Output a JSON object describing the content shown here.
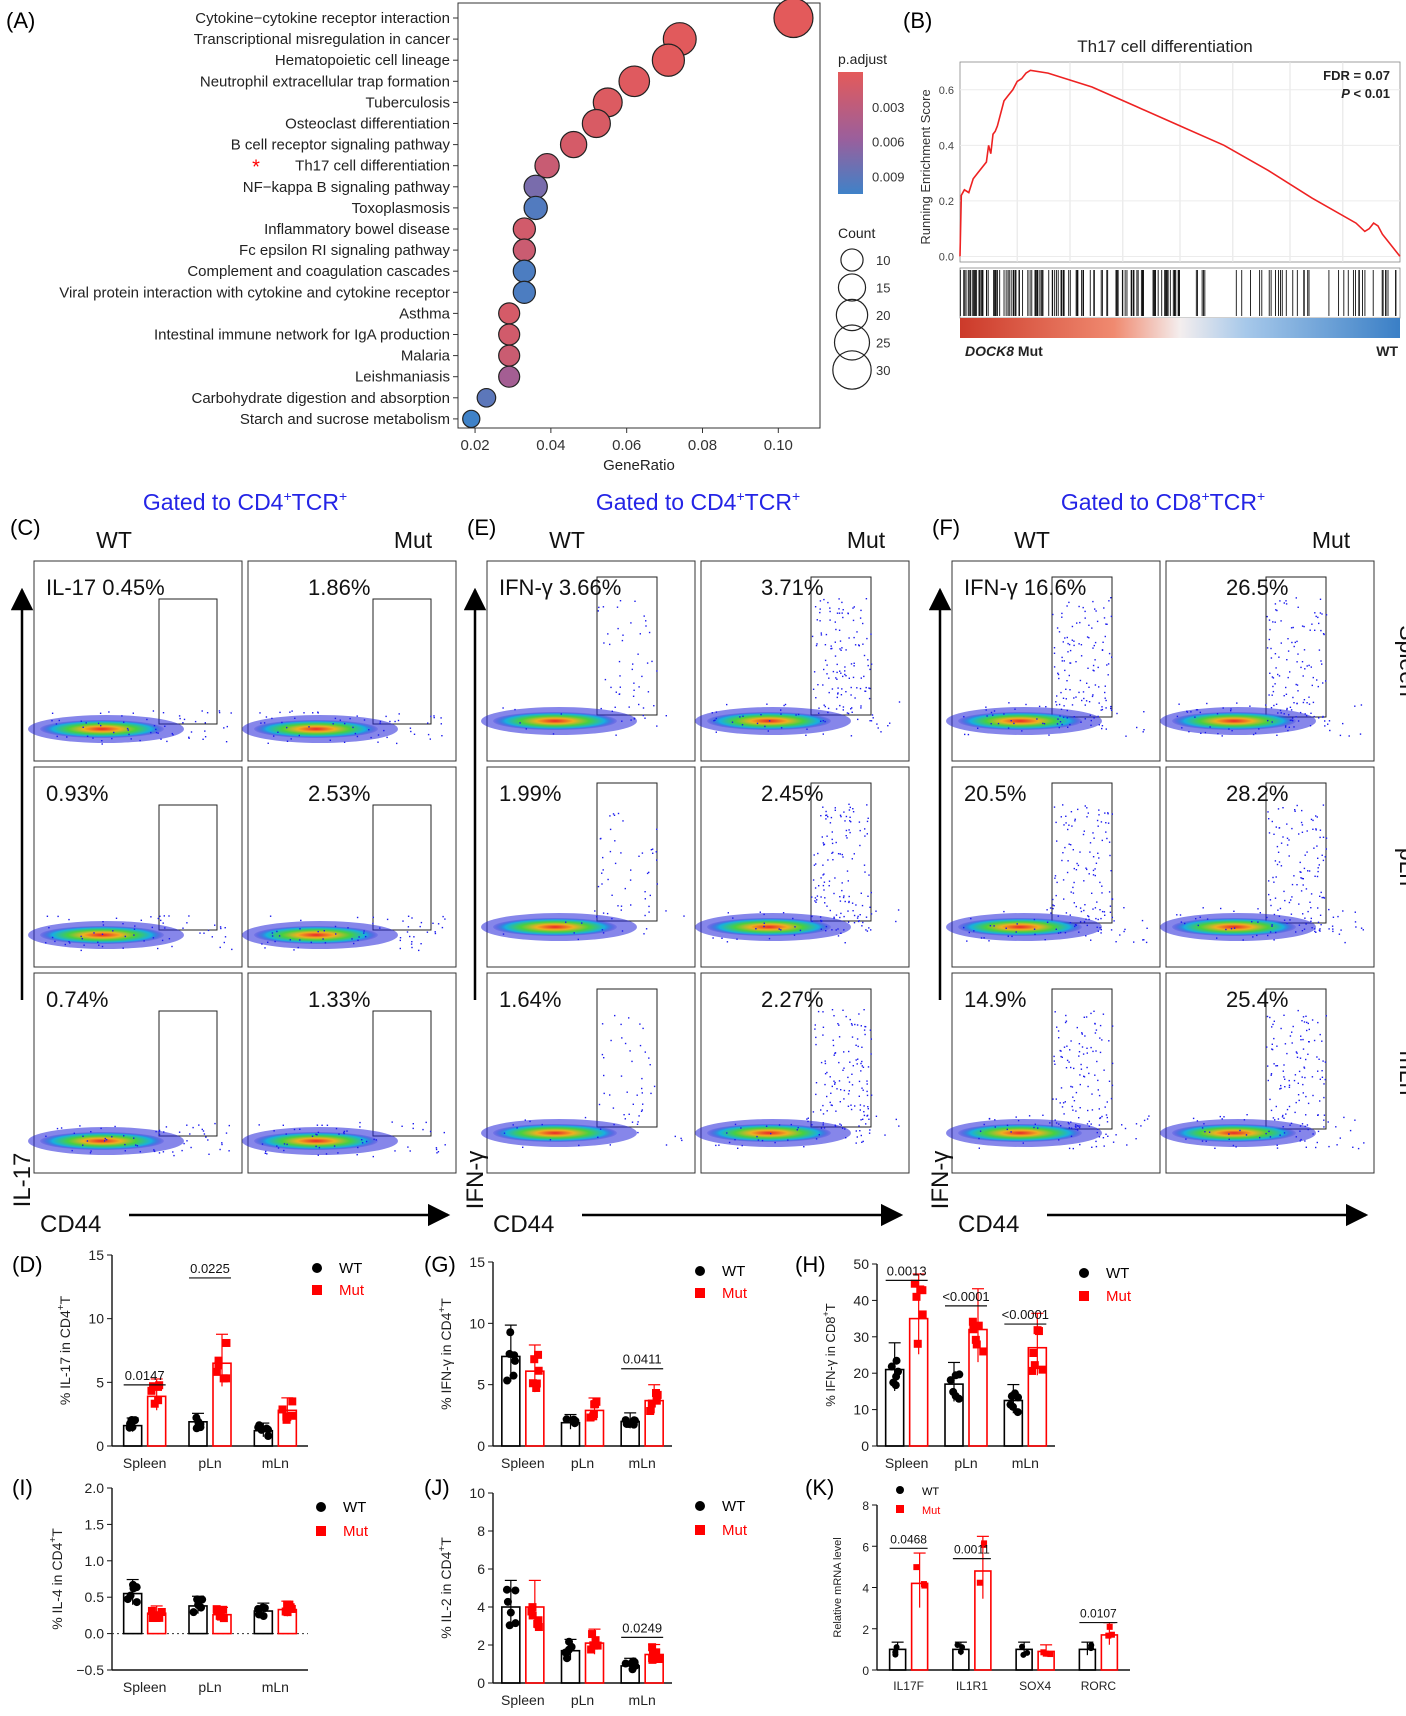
{
  "panel_letters": {
    "A": "(A)",
    "B": "(B)",
    "C": "(C)",
    "D": "(D)",
    "E": "(E)",
    "F": "(F)",
    "G": "(G)",
    "H": "(H)",
    "I": "(I)",
    "J": "(J)",
    "K": "(K)"
  },
  "colors": {
    "wt": "#000000",
    "mut": "#ff0000",
    "gate_title": "#2424e6",
    "gsea_line": "#ee2222"
  },
  "chart_data": [
    {
      "id": "A",
      "type": "scatter",
      "categories": [
        "Cytokine−cytokine receptor interaction",
        "Transcriptional misregulation in cancer",
        "Hematopoietic cell lineage",
        "Neutrophil extracellular trap formation",
        "Tuberculosis",
        "Osteoclast differentiation",
        "B cell receptor signaling pathway",
        "Th17 cell differentiation",
        "NF−kappa B signaling pathway",
        "Toxoplasmosis",
        "Inflammatory bowel disease",
        "Fc epsilon RI signaling pathway",
        "Complement and coagulation cascades",
        "Viral protein interaction with cytokine and cytokine receptor",
        "Asthma",
        "Intestinal immune network for IgA production",
        "Malaria",
        "Leishmaniasis",
        "Carbohydrate digestion and absorption",
        "Starch and sucrose metabolism"
      ],
      "x": [
        0.104,
        0.074,
        0.071,
        0.062,
        0.055,
        0.052,
        0.046,
        0.039,
        0.036,
        0.036,
        0.033,
        0.033,
        0.033,
        0.033,
        0.029,
        0.029,
        0.029,
        0.029,
        0.023,
        0.019
      ],
      "count": [
        31,
        22,
        21,
        19,
        17,
        16,
        14,
        12,
        11,
        11,
        10,
        10,
        10,
        10,
        9,
        9,
        9,
        9,
        7,
        6
      ],
      "p_adjust": [
        0.0001,
        0.0002,
        0.0002,
        0.0004,
        0.0006,
        0.0009,
        0.0012,
        0.0022,
        0.0075,
        0.0095,
        0.0015,
        0.002,
        0.0098,
        0.0098,
        0.0012,
        0.0015,
        0.002,
        0.005,
        0.009,
        0.0105
      ],
      "marked_category": "Th17 cell differentiation",
      "marker_symbol": "*",
      "xlabel": "GeneRatio",
      "xticks": [
        "0.02",
        "0.04",
        "0.06",
        "0.08",
        "0.10"
      ],
      "xlim": [
        0.0155,
        0.111
      ],
      "color_legend": {
        "title": "p.adjust",
        "ticks": [
          "0.003",
          "0.006",
          "0.009"
        ],
        "range": [
          0,
          0.0105
        ]
      },
      "size_legend": {
        "title": "Count",
        "values": [
          10,
          15,
          20,
          25,
          30
        ]
      }
    },
    {
      "id": "B",
      "type": "line",
      "title": "Th17 cell differentiation",
      "ylabel": "Running Enrichment Score",
      "yticks": [
        "0.0",
        "0.2",
        "0.4",
        "0.6"
      ],
      "ylim": [
        -0.02,
        0.7
      ],
      "xlim": [
        0,
        1
      ],
      "x": [
        0,
        0.003,
        0.01,
        0.02,
        0.03,
        0.04,
        0.06,
        0.065,
        0.07,
        0.075,
        0.08,
        0.085,
        0.09,
        0.1,
        0.11,
        0.12,
        0.13,
        0.14,
        0.15,
        0.16,
        0.2,
        0.3,
        0.4,
        0.5,
        0.6,
        0.7,
        0.8,
        0.9,
        0.92,
        0.93,
        0.94,
        0.95,
        0.96,
        0.97,
        1.0
      ],
      "y": [
        0,
        0.22,
        0.24,
        0.23,
        0.28,
        0.3,
        0.34,
        0.4,
        0.37,
        0.44,
        0.45,
        0.47,
        0.5,
        0.56,
        0.58,
        0.6,
        0.63,
        0.64,
        0.66,
        0.67,
        0.66,
        0.61,
        0.54,
        0.47,
        0.4,
        0.31,
        0.21,
        0.12,
        0.09,
        0.1,
        0.12,
        0.11,
        0.08,
        0.06,
        0.0
      ],
      "fdr_text": "FDR = 0.07",
      "p_prefix": "P",
      "p_suffix": " < 0.01",
      "left_label_italic": "DOCK8",
      "left_label_rest": " Mut",
      "right_label": "WT"
    },
    {
      "id": "C",
      "type": "scatter",
      "title_prefix": "Gated to CD4",
      "title_sup1": "+",
      "title_mid": "TCR",
      "title_sup2": "+",
      "col_labels": [
        "WT",
        "Mut"
      ],
      "ylabel": "IL-17",
      "xlabel": "CD44",
      "gate_values": [
        [
          "IL-17 0.45%",
          "1.86%"
        ],
        [
          "0.93%",
          "2.53%"
        ],
        [
          "0.74%",
          "1.33%"
        ]
      ]
    },
    {
      "id": "E",
      "type": "scatter",
      "title_prefix": "Gated to CD4",
      "title_sup1": "+",
      "title_mid": "TCR",
      "title_sup2": "+",
      "col_labels": [
        "WT",
        "Mut"
      ],
      "ylabel": "IFN-γ",
      "xlabel": "CD44",
      "gate_values": [
        [
          "IFN-γ 3.66%",
          "3.71%"
        ],
        [
          "1.99%",
          "2.45%"
        ],
        [
          "1.64%",
          "2.27%"
        ]
      ]
    },
    {
      "id": "F",
      "type": "scatter",
      "title_prefix": "Gated to CD8",
      "title_sup1": "+",
      "title_mid": "TCR",
      "title_sup2": "+",
      "col_labels": [
        "WT",
        "Mut"
      ],
      "row_labels": [
        "Spleen",
        "pLn",
        "mLn"
      ],
      "ylabel": "IFN-γ",
      "xlabel": "CD44",
      "gate_values": [
        [
          "IFN-γ 16.6%",
          "26.5%"
        ],
        [
          "20.5%",
          "28.2%"
        ],
        [
          "14.9%",
          "25.4%"
        ]
      ]
    },
    {
      "id": "D",
      "type": "bar",
      "categories": [
        "Spleen",
        "pLn",
        "mLn"
      ],
      "series": [
        {
          "name": "WT",
          "values": [
            1.6,
            1.9,
            1.2
          ]
        },
        {
          "name": "Mut",
          "values": [
            3.9,
            6.5,
            2.8
          ]
        }
      ],
      "ylabel_pre": "% IL-17 in CD4",
      "ylabel_sup": "+",
      "ylabel_post": "T",
      "yticks": [
        "0",
        "5",
        "10",
        "15"
      ],
      "ylim": [
        0,
        15
      ],
      "annotations": [
        {
          "text": "0.0147",
          "category": 0,
          "y": 4.8
        },
        {
          "text": "0.0225",
          "category": 1,
          "y": 13.2
        }
      ]
    },
    {
      "id": "G",
      "type": "bar",
      "categories": [
        "Spleen",
        "pLn",
        "mLn"
      ],
      "series": [
        {
          "name": "WT",
          "values": [
            7.3,
            1.9,
            2.0
          ]
        },
        {
          "name": "Mut",
          "values": [
            6.1,
            2.9,
            3.7
          ]
        }
      ],
      "ylabel_pre": "% IFN-γ in CD4",
      "ylabel_sup": "+",
      "ylabel_post": "T",
      "yticks": [
        "0",
        "5",
        "10",
        "15"
      ],
      "ylim": [
        0,
        15
      ],
      "annotations": [
        {
          "text": "0.0411",
          "category": 2,
          "y": 6.3
        }
      ]
    },
    {
      "id": "H",
      "type": "bar",
      "categories": [
        "Spleen",
        "pLn",
        "mLn"
      ],
      "series": [
        {
          "name": "WT",
          "values": [
            21,
            17,
            12.5
          ]
        },
        {
          "name": "Mut",
          "values": [
            35,
            32,
            27
          ]
        }
      ],
      "ylabel_pre": "% IFN-γ in CD8",
      "ylabel_sup": "+",
      "ylabel_post": "T",
      "yticks": [
        "0",
        "10",
        "20",
        "30",
        "40",
        "50"
      ],
      "ylim": [
        0,
        50
      ],
      "annotations": [
        {
          "text": "0.0013",
          "category": 0,
          "y": 45.5
        },
        {
          "text": "<0.0001",
          "category": 1,
          "y": 38.5
        },
        {
          "text": "<0.0001",
          "category": 2,
          "y": 33.5
        }
      ]
    },
    {
      "id": "I",
      "type": "bar",
      "categories": [
        "Spleen",
        "pLn",
        "mLn"
      ],
      "series": [
        {
          "name": "WT",
          "values": [
            0.55,
            0.38,
            0.31
          ]
        },
        {
          "name": "Mut",
          "values": [
            0.28,
            0.26,
            0.33
          ]
        }
      ],
      "ylabel_pre": "% IL-4 in CD4",
      "ylabel_sup": "+",
      "ylabel_post": "T",
      "yticks": [
        "−0.5",
        "0.0",
        "0.5",
        "1.0",
        "1.5",
        "2.0"
      ],
      "ylim": [
        -0.5,
        2.0
      ],
      "dotted_zero": true,
      "annotations": []
    },
    {
      "id": "J",
      "type": "bar",
      "categories": [
        "Spleen",
        "pLn",
        "mLn"
      ],
      "series": [
        {
          "name": "WT",
          "values": [
            4.0,
            1.7,
            0.9
          ]
        },
        {
          "name": "Mut",
          "values": [
            4.0,
            2.1,
            1.5
          ]
        }
      ],
      "ylabel_pre": "% IL-2 in CD4",
      "ylabel_sup": "+",
      "ylabel_post": "T",
      "yticks": [
        "0",
        "2",
        "4",
        "6",
        "8",
        "10"
      ],
      "ylim": [
        0,
        10
      ],
      "annotations": [
        {
          "text": "0.0249",
          "category": 2,
          "y": 2.4
        }
      ]
    },
    {
      "id": "K",
      "type": "bar",
      "categories": [
        "IL17F",
        "IL1R1",
        "SOX4",
        "RORC"
      ],
      "series": [
        {
          "name": "WT",
          "values": [
            1.0,
            1.0,
            1.0,
            1.0
          ]
        },
        {
          "name": "Mut",
          "values": [
            4.2,
            4.8,
            0.9,
            1.7
          ]
        }
      ],
      "ylabel_pre": "Relative mRNA level",
      "ylabel_sup": "",
      "ylabel_post": "",
      "yticks": [
        "0",
        "2",
        "4",
        "6",
        "8"
      ],
      "ylim": [
        0,
        8
      ],
      "annotations": [
        {
          "text": "0.0468",
          "category": 0,
          "y": 5.9
        },
        {
          "text": "0.0011",
          "category": 1,
          "y": 5.4
        },
        {
          "text": "0.0107",
          "category": 3,
          "y": 2.3
        }
      ]
    }
  ]
}
